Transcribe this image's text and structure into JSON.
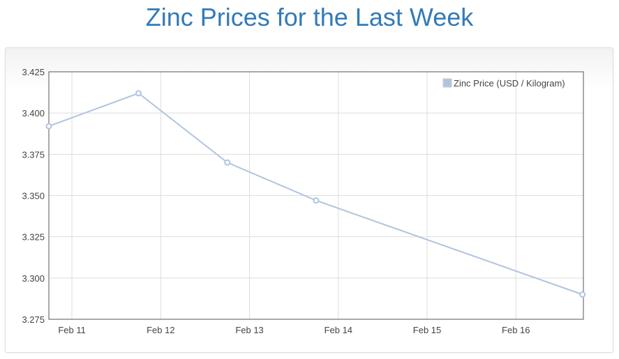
{
  "chart_data": {
    "type": "line",
    "title": "Zinc Prices for the Last Week",
    "xlabel": "",
    "ylabel": "",
    "x_unit": "day of February",
    "x": [
      10.74,
      11.75,
      12.75,
      13.75,
      16.75
    ],
    "series": [
      {
        "name": "Zinc Price (USD / Kilogram)",
        "values": [
          3.392,
          3.412,
          3.37,
          3.347,
          3.29
        ],
        "color": "#b0c4de"
      }
    ],
    "xticks": [
      {
        "value": 11,
        "label": "Feb 11"
      },
      {
        "value": 12,
        "label": "Feb 12"
      },
      {
        "value": 13,
        "label": "Feb 13"
      },
      {
        "value": 14,
        "label": "Feb 14"
      },
      {
        "value": 15,
        "label": "Feb 15"
      },
      {
        "value": 16,
        "label": "Feb 16"
      }
    ],
    "yticks": [
      "3.275",
      "3.300",
      "3.325",
      "3.350",
      "3.375",
      "3.400",
      "3.425"
    ],
    "xlim": [
      10.74,
      16.76
    ],
    "ylim": [
      3.275,
      3.425
    ],
    "grid": true,
    "legend": "top-right"
  }
}
